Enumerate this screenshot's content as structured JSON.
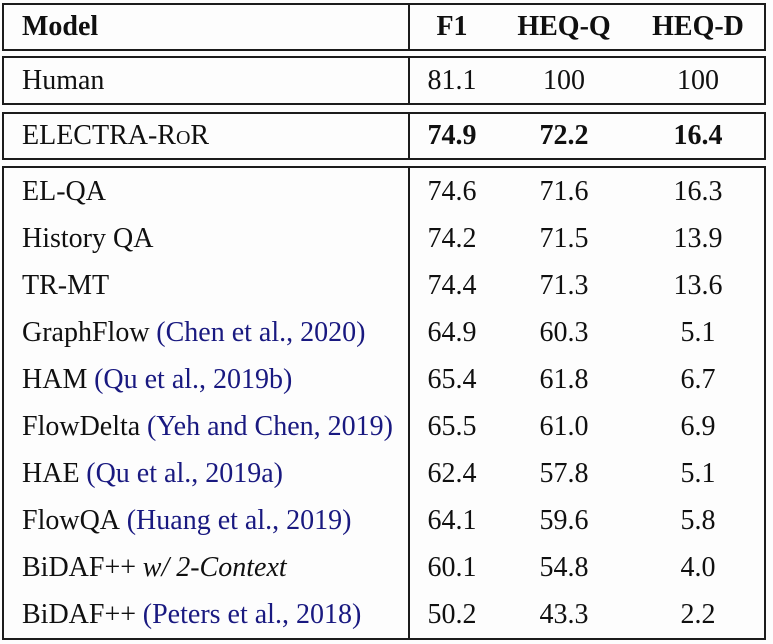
{
  "colors": {
    "citation": "#191980",
    "text": "#101010",
    "border": "#1c1c1c",
    "background": "#fdfdfd"
  },
  "header": {
    "model": "Model",
    "f1": "F1",
    "heqq": "HEQ-Q",
    "heqd": "HEQ-D"
  },
  "human_row": {
    "model": "Human",
    "f1": "81.1",
    "heqq": "100",
    "heqd": "100"
  },
  "highlight_row": {
    "model": "ELECTRA-RoR",
    "f1": "74.9",
    "heqq": "72.2",
    "heqd": "16.4"
  },
  "rows": [
    {
      "model": "EL-QA",
      "cite": "",
      "italic": "",
      "f1": "74.6",
      "heqq": "71.6",
      "heqd": "16.3"
    },
    {
      "model": "History QA",
      "cite": "",
      "italic": "",
      "f1": "74.2",
      "heqq": "71.5",
      "heqd": "13.9"
    },
    {
      "model": "TR-MT",
      "cite": "",
      "italic": "",
      "f1": "74.4",
      "heqq": "71.3",
      "heqd": "13.6"
    },
    {
      "model": "GraphFlow",
      "cite": "(Chen et al., 2020)",
      "italic": "",
      "f1": "64.9",
      "heqq": "60.3",
      "heqd": "5.1"
    },
    {
      "model": "HAM",
      "cite": "(Qu et al., 2019b)",
      "italic": "",
      "f1": "65.4",
      "heqq": "61.8",
      "heqd": "6.7"
    },
    {
      "model": "FlowDelta",
      "cite": "(Yeh and Chen, 2019)",
      "italic": "",
      "f1": "65.5",
      "heqq": "61.0",
      "heqd": "6.9"
    },
    {
      "model": "HAE",
      "cite": "(Qu et al., 2019a)",
      "italic": "",
      "f1": "62.4",
      "heqq": "57.8",
      "heqd": "5.1"
    },
    {
      "model": "FlowQA",
      "cite": "(Huang et al., 2019)",
      "italic": "",
      "f1": "64.1",
      "heqq": "59.6",
      "heqd": "5.8"
    },
    {
      "model": "BiDAF++",
      "cite": "",
      "italic": "w/ 2-Context",
      "f1": "60.1",
      "heqq": "54.8",
      "heqd": "4.0"
    },
    {
      "model": "BiDAF++",
      "cite": "(Peters et al., 2018)",
      "italic": "",
      "f1": "50.2",
      "heqq": "43.3",
      "heqd": "2.2"
    }
  ],
  "chart_data": {
    "type": "table",
    "columns": [
      "Model",
      "F1",
      "HEQ-Q",
      "HEQ-D"
    ],
    "rows": [
      [
        "Human",
        81.1,
        100,
        100
      ],
      [
        "ELECTRA-RoR",
        74.9,
        72.2,
        16.4
      ],
      [
        "EL-QA",
        74.6,
        71.6,
        16.3
      ],
      [
        "History QA",
        74.2,
        71.5,
        13.9
      ],
      [
        "TR-MT",
        74.4,
        71.3,
        13.6
      ],
      [
        "GraphFlow (Chen et al., 2020)",
        64.9,
        60.3,
        5.1
      ],
      [
        "HAM (Qu et al., 2019b)",
        65.4,
        61.8,
        6.7
      ],
      [
        "FlowDelta (Yeh and Chen, 2019)",
        65.5,
        61.0,
        6.9
      ],
      [
        "HAE (Qu et al., 2019a)",
        62.4,
        57.8,
        5.1
      ],
      [
        "FlowQA (Huang et al., 2019)",
        64.1,
        59.6,
        5.8
      ],
      [
        "BiDAF++ w/ 2-Context",
        60.1,
        54.8,
        4.0
      ],
      [
        "BiDAF++ (Peters et al., 2018)",
        50.2,
        43.3,
        2.2
      ]
    ]
  }
}
